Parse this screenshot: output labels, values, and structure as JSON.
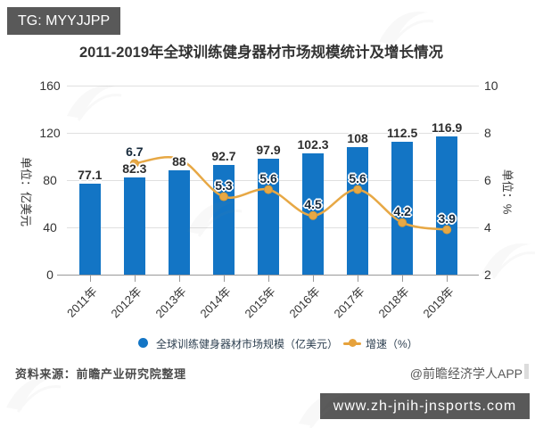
{
  "badge": {
    "label": "TG: MYYJJPP"
  },
  "title": "2011-2019年全球训练健身器材市场规模统计及增长情况",
  "chart_data": {
    "type": "bar+line combo",
    "title": "2011-2019年全球训练健身器材市场规模统计及增长情况",
    "categories": [
      "2011年",
      "2012年",
      "2013年",
      "2014年",
      "2015年",
      "2016年",
      "2017年",
      "2018年",
      "2019年"
    ],
    "series": [
      {
        "name": "全球训练健身器材市场规模（亿美元）",
        "type": "bar",
        "axis": "left",
        "color": "#1375C5",
        "values": [
          77.1,
          82.3,
          88,
          92.7,
          97.9,
          102.3,
          108,
          112.5,
          116.9
        ],
        "labels": [
          "77.1",
          "82.3",
          "88",
          "92.7",
          "97.9",
          "102.3",
          "108",
          "112.5",
          "116.9"
        ]
      },
      {
        "name": "增速（%）",
        "type": "line",
        "axis": "right",
        "color": "#E7A845",
        "values": [
          null,
          6.7,
          6.9,
          5.3,
          5.6,
          4.5,
          5.6,
          4.2,
          3.9
        ],
        "labels": [
          null,
          "6.7",
          null,
          "5.3",
          "5.6",
          "4.5",
          "5.6",
          "4.2",
          "3.9"
        ]
      }
    ],
    "left_axis": {
      "name": "单位：亿美元",
      "min": 0,
      "max": 160,
      "ticks": [
        0,
        40,
        80,
        120,
        160
      ]
    },
    "right_axis": {
      "name": "单位：%",
      "min": 2,
      "max": 10,
      "ticks": [
        2,
        4,
        6,
        8,
        10
      ]
    },
    "grid": true,
    "legend_position": "bottom"
  },
  "legend": {
    "items": [
      {
        "label": "全球训练健身器材市场规模（亿美元）",
        "color": "#1375C5",
        "marker": "circle"
      },
      {
        "label": "增速（%）",
        "color": "#E6A23C",
        "marker": "line-dot"
      }
    ]
  },
  "footer": {
    "source": "资料来源：前瞻产业研究院整理",
    "credit": "@前瞻经济学人APP",
    "website": "www.zh-jnih-jnsports.com"
  },
  "colors": {
    "bar": "#1375C5",
    "line": "#E6A23C",
    "badge_bg": "#595959",
    "site_box_bg": "#595959"
  }
}
